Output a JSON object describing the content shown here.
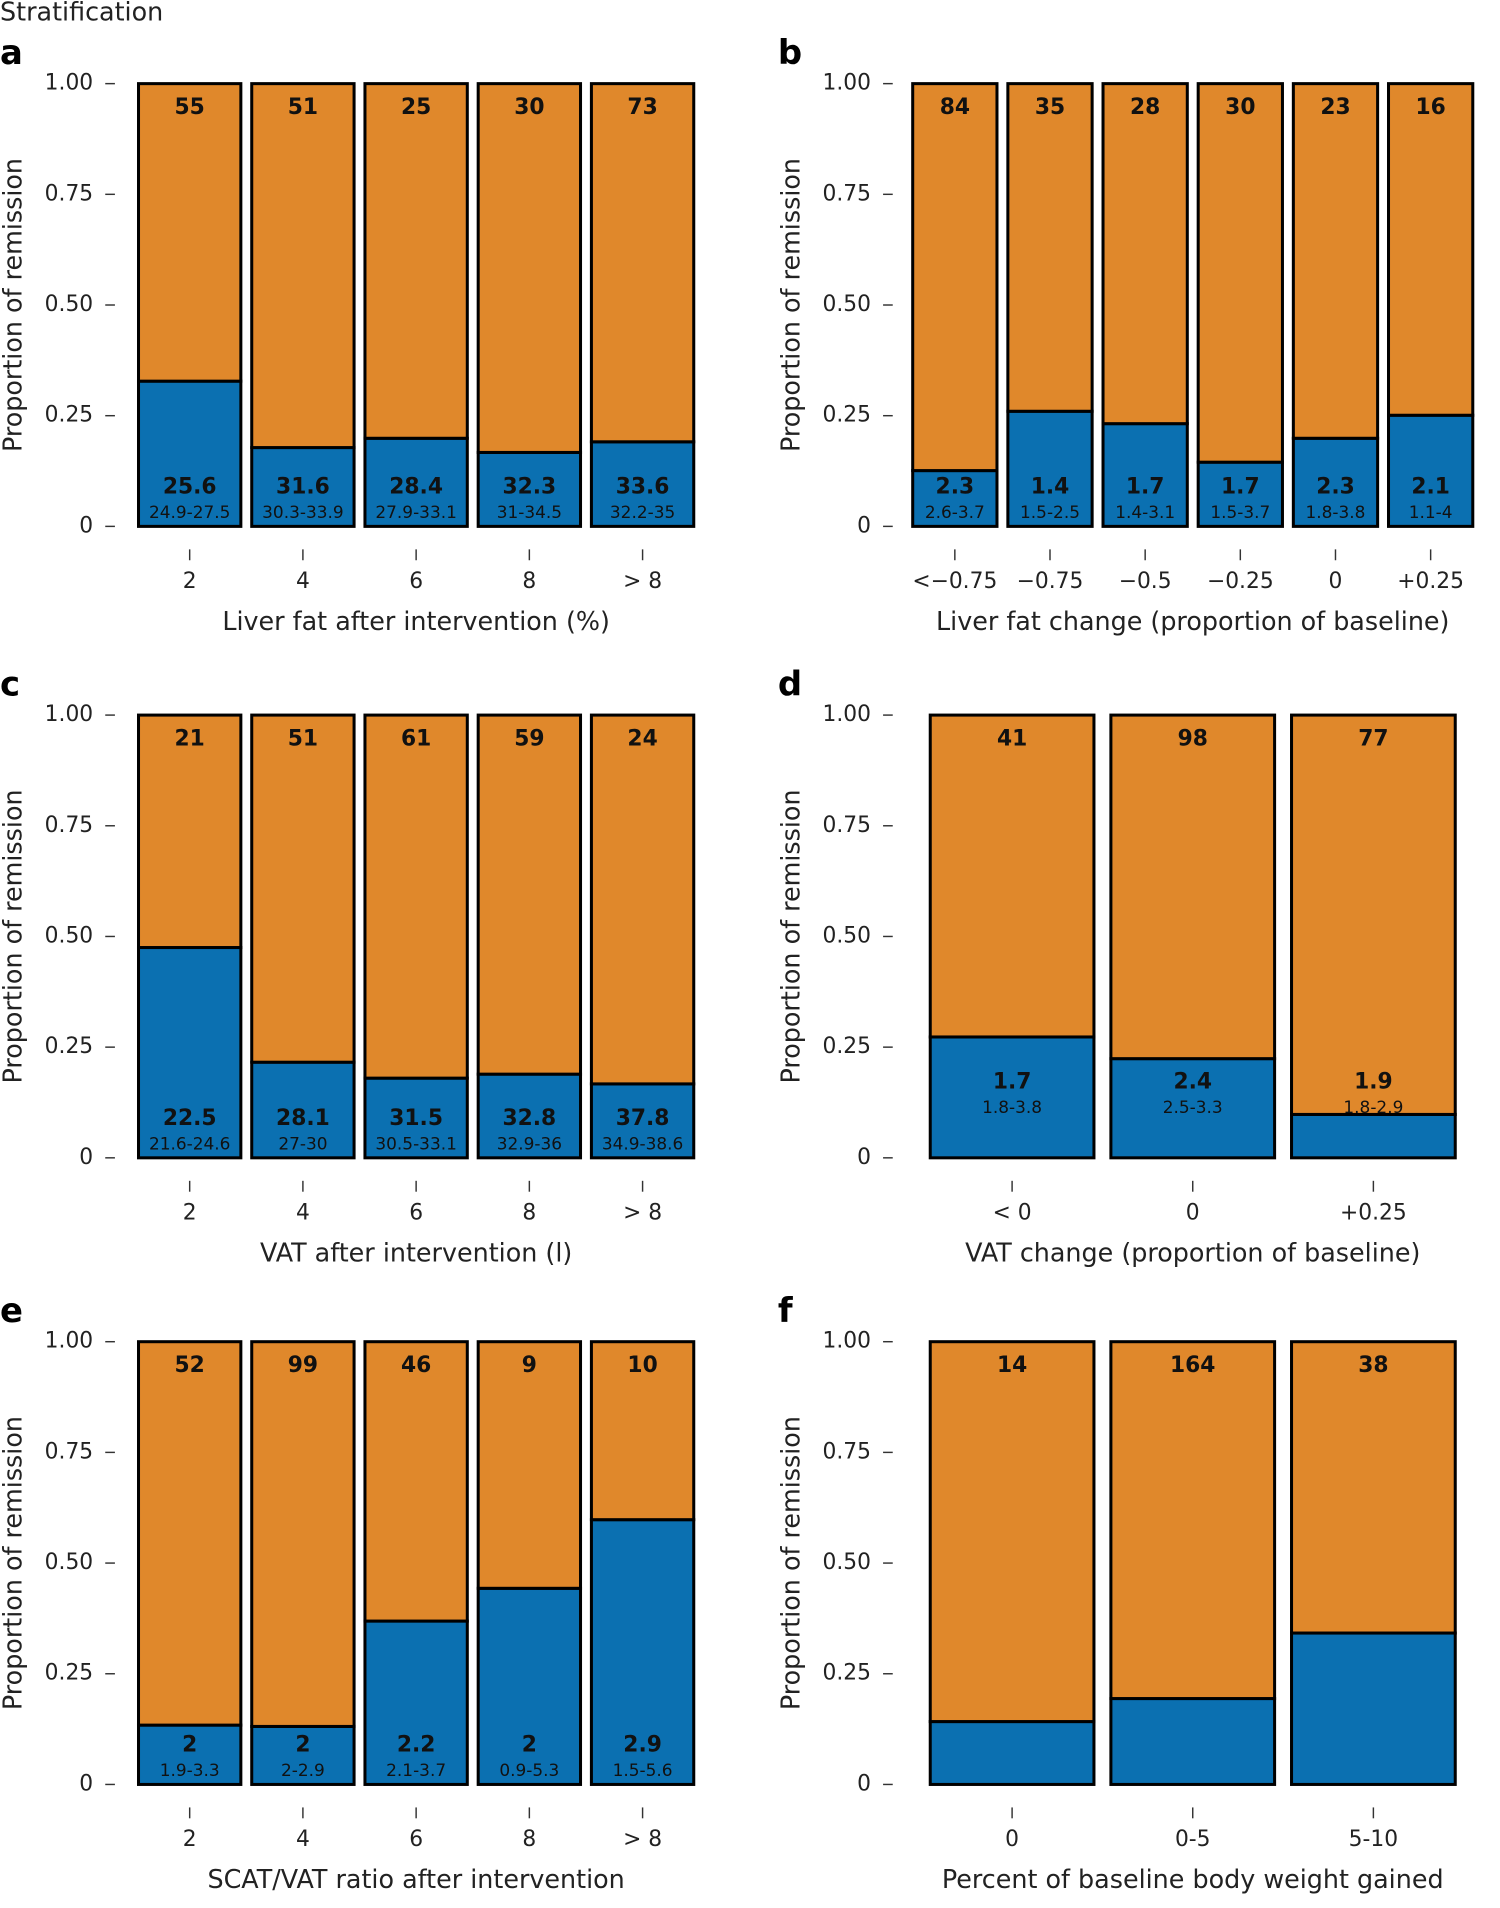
{
  "title": "Stratification",
  "chart_data": [
    {
      "type": "stacked_bar",
      "panel": "a",
      "xlabel": "Liver fat after intervention (%)",
      "ylabel": "Proportion of remission",
      "categories": [
        "2",
        "4",
        "6",
        "8",
        "> 8"
      ],
      "series": [
        {
          "color": "#0b70b1",
          "values": [
            0.328,
            0.178,
            0.199,
            0.167,
            0.191
          ]
        },
        {
          "color": "#e0882b",
          "values": [
            0.672,
            0.822,
            0.801,
            0.833,
            0.809
          ]
        }
      ],
      "counts": [
        55,
        51,
        25,
        30,
        73
      ],
      "medians": [
        25.6,
        31.6,
        28.4,
        32.3,
        33.6
      ],
      "ranges": [
        "24.9-27.5",
        "30.3-33.9",
        "27.9-33.1",
        "31-34.5",
        "32.2-35"
      ],
      "ylim": [
        0,
        1
      ],
      "yticks": [
        0,
        0.25,
        {
          "value": 0.5,
          "label": "0.50"
        },
        0.75,
        {
          "value": 1,
          "label": "1.00"
        }
      ]
    },
    {
      "type": "stacked_bar",
      "panel": "b",
      "xlabel": "Liver fat change (proportion of baseline)",
      "ylabel": "Proportion of remission",
      "categories": [
        "<−0.75",
        "−0.75",
        "−0.5",
        "−0.25",
        "0",
        "+0.25"
      ],
      "series": [
        {
          "color": "#0b70b1",
          "values": [
            0.126,
            0.26,
            0.232,
            0.145,
            0.199,
            0.251
          ]
        },
        {
          "color": "#e0882b",
          "values": [
            0.874,
            0.74,
            0.768,
            0.855,
            0.801,
            0.749
          ]
        }
      ],
      "counts": [
        84,
        35,
        28,
        30,
        23,
        16
      ],
      "medians": [
        2.3,
        1.4,
        1.7,
        1.7,
        2.3,
        2.1
      ],
      "ranges": [
        "2.6-3.7",
        "1.5-2.5",
        "1.4-3.1",
        "1.5-3.7",
        "1.8-3.8",
        "1.1-4"
      ],
      "ylim": [
        0,
        1
      ],
      "yticks": [
        0,
        0.25,
        {
          "value": 0.5,
          "label": "0.50"
        },
        0.75,
        {
          "value": 1,
          "label": "1.00"
        }
      ]
    },
    {
      "type": "stacked_bar",
      "panel": "c",
      "xlabel": "VAT after intervention (l)",
      "ylabel": "Proportion of remission",
      "categories": [
        "2",
        "4",
        "6",
        "8",
        "> 8"
      ],
      "series": [
        {
          "color": "#0b70b1",
          "values": [
            0.475,
            0.216,
            0.18,
            0.189,
            0.167
          ]
        },
        {
          "color": "#e0882b",
          "values": [
            0.525,
            0.784,
            0.82,
            0.811,
            0.833
          ]
        }
      ],
      "counts": [
        21,
        51,
        61,
        59,
        24
      ],
      "medians": [
        22.5,
        28.1,
        31.5,
        32.8,
        37.8
      ],
      "ranges": [
        "21.6-24.6",
        "27-30",
        "30.5-33.1",
        "32.9-36",
        "34.9-38.6"
      ],
      "ylim": [
        0,
        1
      ],
      "yticks": [
        0,
        0.25,
        {
          "value": 0.5,
          "label": "0.50"
        },
        0.75,
        {
          "value": 1,
          "label": "1.00"
        }
      ]
    },
    {
      "type": "stacked_bar",
      "panel": "d",
      "xlabel": "VAT change (proportion of baseline)",
      "ylabel": "Proportion of remission",
      "categories": [
        "< 0",
        "0",
        "+0.25"
      ],
      "series": [
        {
          "color": "#0b70b1",
          "values": [
            0.273,
            0.224,
            0.098
          ]
        },
        {
          "color": "#e0882b",
          "values": [
            0.727,
            0.776,
            0.902
          ]
        }
      ],
      "counts": [
        41,
        98,
        77
      ],
      "medians": [
        1.7,
        2.4,
        1.9
      ],
      "ranges": [
        "1.8-3.8",
        "2.5-3.3",
        "1.8-2.9"
      ],
      "ylim": [
        0,
        1
      ],
      "yticks": [
        0,
        0.25,
        {
          "value": 0.5,
          "label": "0.50"
        },
        0.75,
        {
          "value": 1,
          "label": "1.00"
        }
      ]
    },
    {
      "type": "stacked_bar",
      "panel": "e",
      "xlabel": "SCAT/VAT ratio after intervention",
      "ylabel": "Proportion of remission",
      "categories": [
        "2",
        "4",
        "6",
        "8",
        "> 8"
      ],
      "series": [
        {
          "color": "#0b70b1",
          "values": [
            0.134,
            0.131,
            0.369,
            0.443,
            0.598
          ]
        },
        {
          "color": "#e0882b",
          "values": [
            0.866,
            0.869,
            0.631,
            0.557,
            0.402
          ]
        }
      ],
      "counts": [
        52,
        99,
        46,
        9,
        10
      ],
      "medians": [
        2,
        2,
        2.2,
        2,
        2.9
      ],
      "ranges": [
        "1.9-3.3",
        "2-2.9",
        "2.1-3.7",
        "0.9-5.3",
        "1.5-5.6"
      ],
      "ylim": [
        0,
        1
      ],
      "yticks": [
        0,
        0.25,
        {
          "value": 0.5,
          "label": "0.50"
        },
        0.75,
        {
          "value": 1,
          "label": "1.00"
        }
      ]
    },
    {
      "type": "stacked_bar",
      "panel": "f",
      "xlabel": "Percent of baseline body weight gained",
      "ylabel": "Proportion of remission",
      "categories": [
        "0",
        "0-5",
        "5-10"
      ],
      "series": [
        {
          "color": "#0b70b1",
          "values": [
            0.142,
            0.194,
            0.342
          ]
        },
        {
          "color": "#e0882b",
          "values": [
            0.858,
            0.806,
            0.658
          ]
        }
      ],
      "counts": [
        14,
        164,
        38
      ],
      "ylim": [
        0,
        1
      ],
      "yticks": [
        0,
        0.25,
        {
          "value": 0.5,
          "label": "0.50"
        },
        0.75,
        {
          "value": 1,
          "label": "1.00"
        }
      ]
    }
  ]
}
